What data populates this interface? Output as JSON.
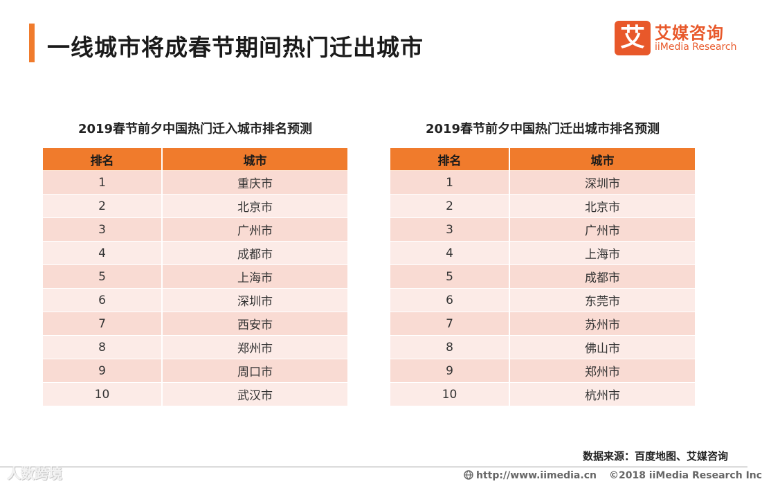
{
  "header": {
    "title": "一线城市将成春节期间热门迁出城市",
    "accent_color": "#f07b2c"
  },
  "logo": {
    "mark": "艾",
    "name_cn": "艾媒咨询",
    "name_en": "iiMedia Research",
    "color": "#e8582a"
  },
  "inbound": {
    "title": "2019春节前夕中国热门迁入城市排名预测",
    "headers": [
      "排名",
      "城市"
    ],
    "rows": [
      [
        "1",
        "重庆市"
      ],
      [
        "2",
        "北京市"
      ],
      [
        "3",
        "广州市"
      ],
      [
        "4",
        "成都市"
      ],
      [
        "5",
        "上海市"
      ],
      [
        "6",
        "深圳市"
      ],
      [
        "7",
        "西安市"
      ],
      [
        "8",
        "郑州市"
      ],
      [
        "9",
        "周口市"
      ],
      [
        "10",
        "武汉市"
      ]
    ]
  },
  "outbound": {
    "title": "2019春节前夕中国热门迁出城市排名预测",
    "headers": [
      "排名",
      "城市"
    ],
    "rows": [
      [
        "1",
        "深圳市"
      ],
      [
        "2",
        "北京市"
      ],
      [
        "3",
        "广州市"
      ],
      [
        "4",
        "上海市"
      ],
      [
        "5",
        "成都市"
      ],
      [
        "6",
        "东莞市"
      ],
      [
        "7",
        "苏州市"
      ],
      [
        "8",
        "佛山市"
      ],
      [
        "9",
        "郑州市"
      ],
      [
        "10",
        "杭州市"
      ]
    ]
  },
  "source": "数据来源：百度地图、艾媒咨询",
  "footer": {
    "url": "http://www.iimedia.cn",
    "copyright": "©2018  iiMedia Research Inc",
    "watermark": "人数跨境"
  },
  "colors": {
    "header_bg": "#f07b2c",
    "row_odd": "#f9dbd3",
    "row_even": "#fcebe7"
  }
}
